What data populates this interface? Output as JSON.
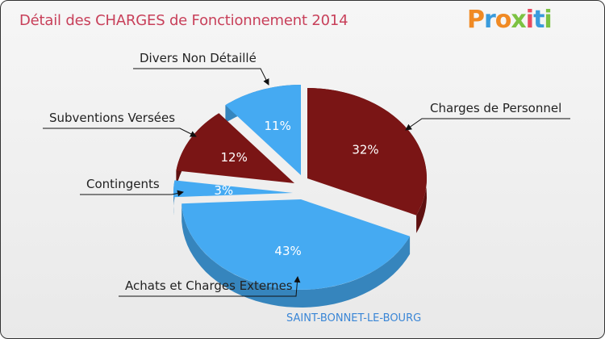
{
  "title": "Détail des CHARGES de Fonctionnement 2014",
  "logo": "Proxiti",
  "footer": "SAINT-BONNET-LE-BOURG",
  "colors": {
    "dark_red": "#7a1515",
    "light_blue": "#45aaf2",
    "title": "#c8405a"
  },
  "chart_data": {
    "type": "pie",
    "title": "Détail des CHARGES de Fonctionnement 2014",
    "subtitle": "SAINT-BONNET-LE-BOURG",
    "slices": [
      {
        "label": "Charges de Personnel",
        "value": 32,
        "pct_label": "32%",
        "color": "#7a1515"
      },
      {
        "label": "Achats et Charges Externes",
        "value": 43,
        "pct_label": "43%",
        "color": "#45aaf2"
      },
      {
        "label": "Contingents",
        "value": 3,
        "pct_label": "3%",
        "color": "#45aaf2"
      },
      {
        "label": "Subventions Versées",
        "value": 12,
        "pct_label": "12%",
        "color": "#7a1515"
      },
      {
        "label": "Divers Non Détaillé",
        "value": 11,
        "pct_label": "11%",
        "color": "#45aaf2"
      }
    ]
  }
}
